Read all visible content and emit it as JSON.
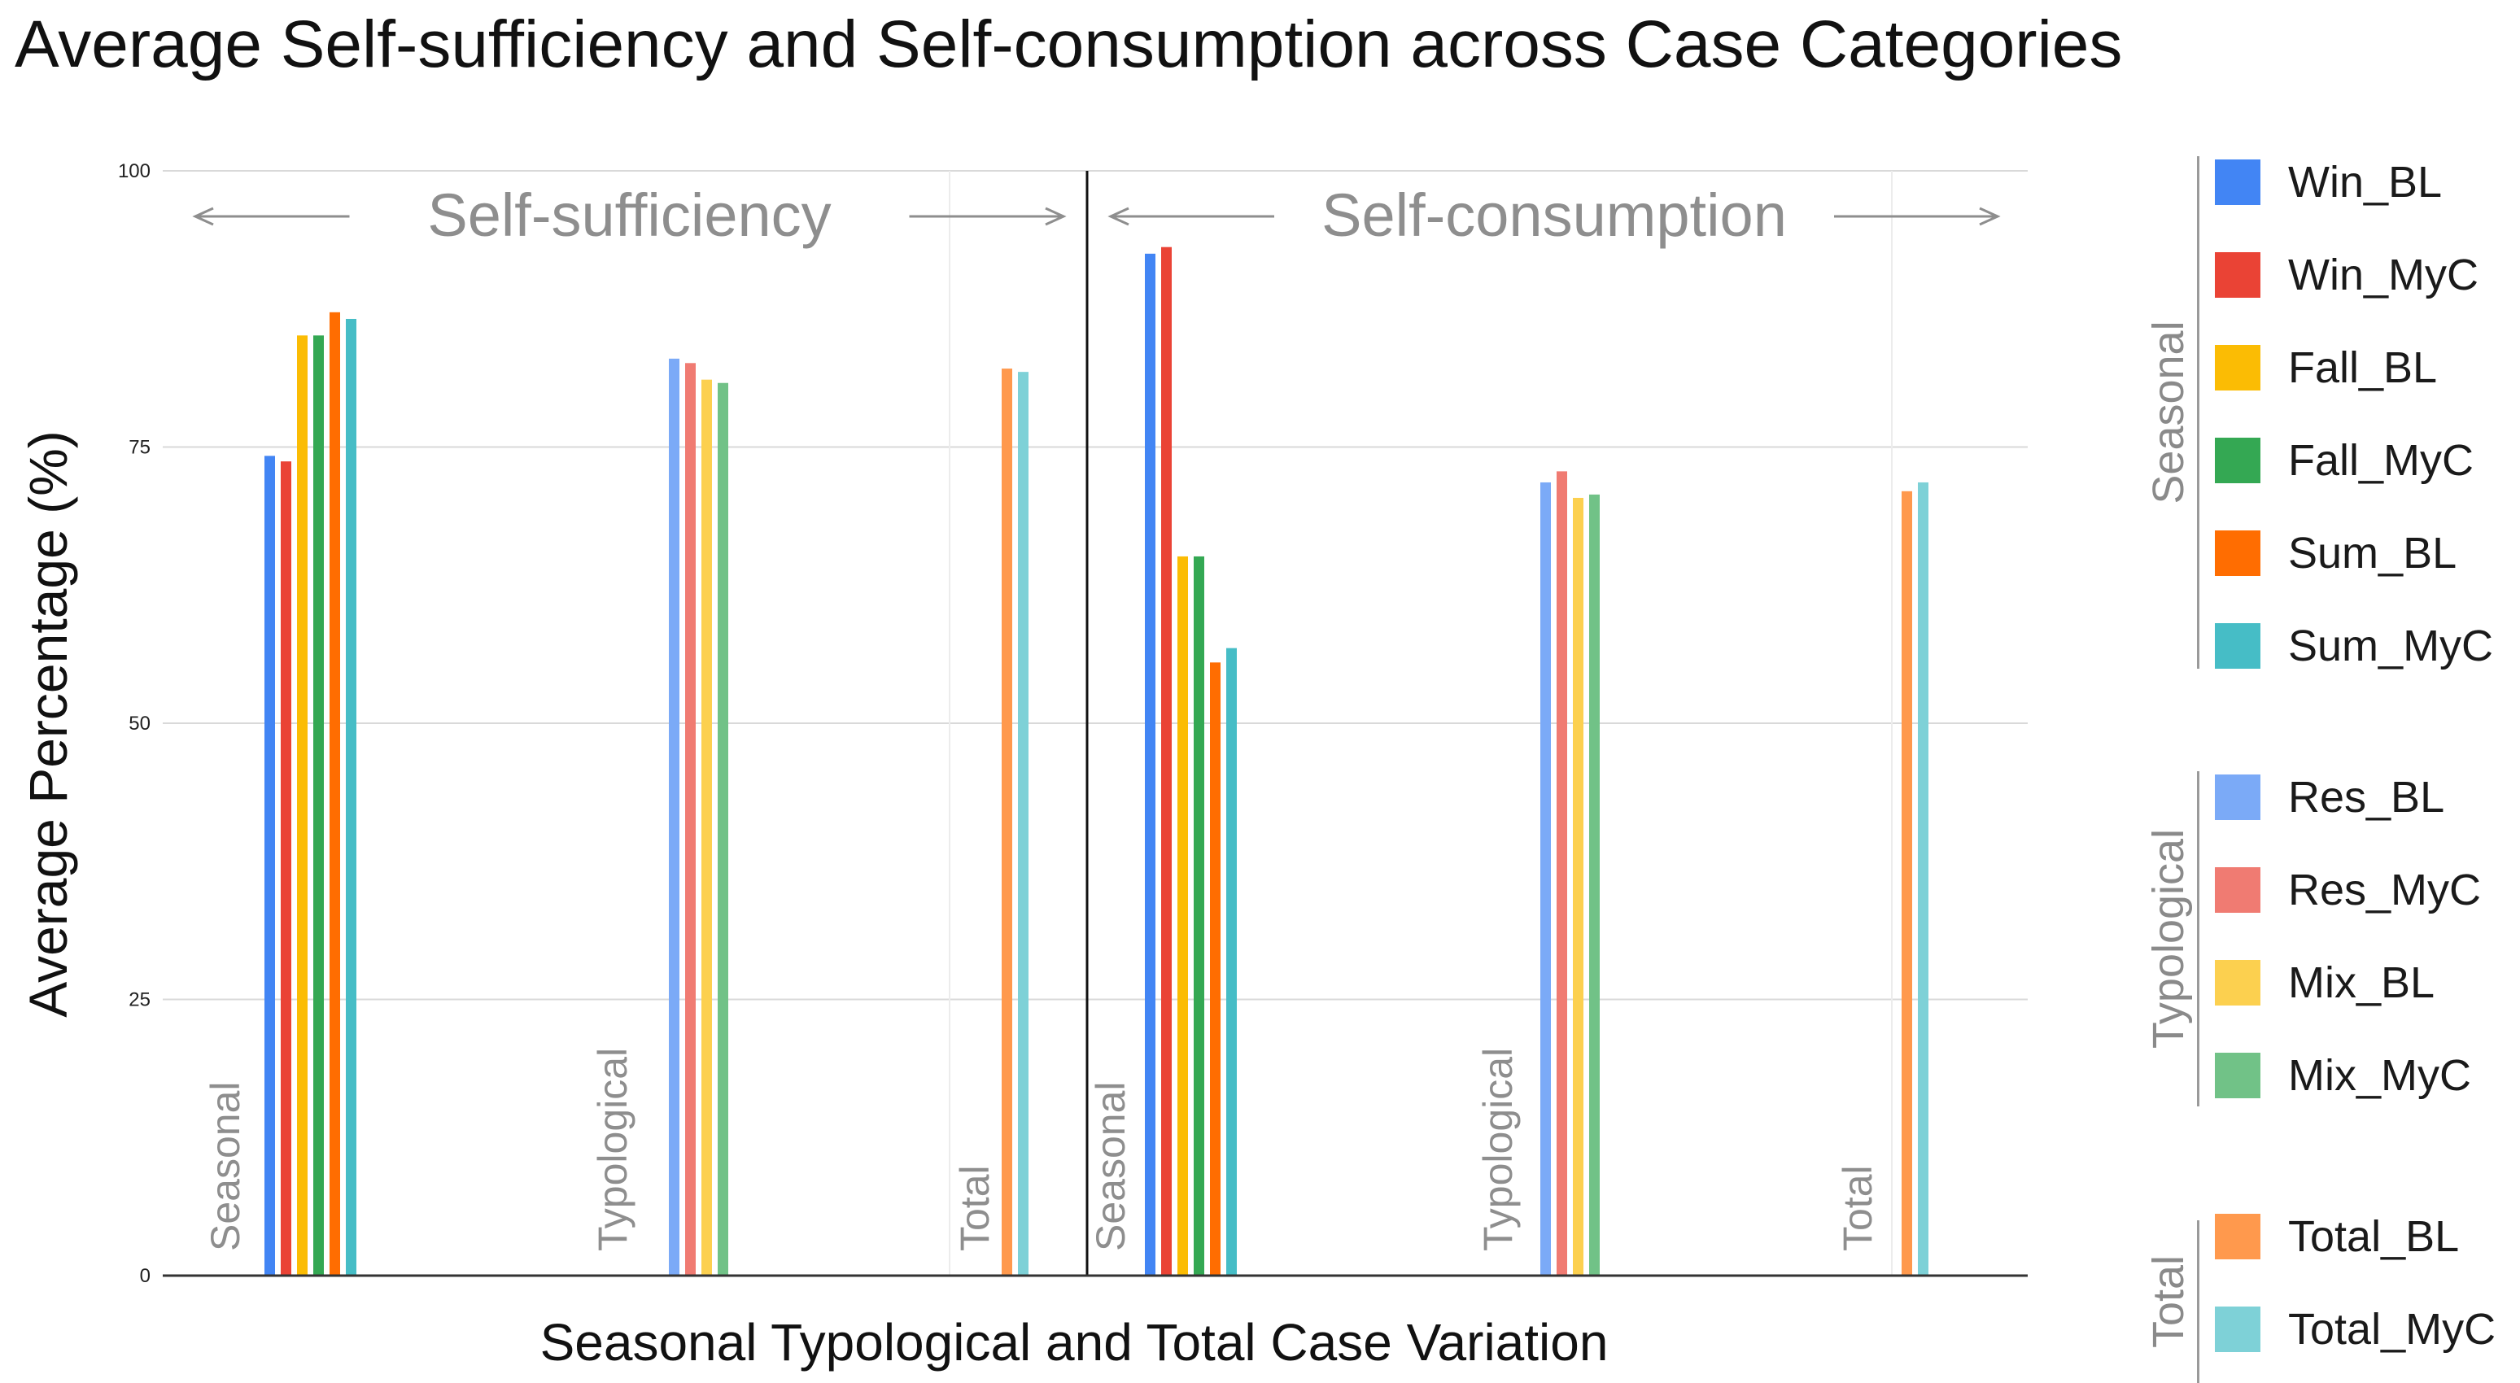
{
  "chart_data": {
    "type": "bar",
    "title": "Average Self-sufficiency and Self-consumption across Case Categories",
    "xlabel": "Seasonal Typological and Total Case Variation",
    "ylabel": "Average Percentage (%)",
    "ylim": [
      0,
      100
    ],
    "yticks": [
      "0",
      "25",
      "50",
      "75",
      "100"
    ],
    "grid": true,
    "legend_position": "right",
    "panels": [
      {
        "label": "Self-sufficiency",
        "groups": [
          {
            "label": "Seasonal",
            "series": [
              "Win_BL",
              "Win_MyC",
              "Fall_BL",
              "Fall_MyC",
              "Sum_BL",
              "Sum_MyC"
            ],
            "values": [
              74.2,
              73.7,
              85.1,
              85.1,
              87.2,
              86.6
            ]
          },
          {
            "label": "Typological",
            "series": [
              "Res_BL",
              "Res_MyC",
              "Mix_BL",
              "Mix_MyC"
            ],
            "values": [
              83.0,
              82.6,
              81.1,
              80.8
            ]
          },
          {
            "label": "Total",
            "series": [
              "Total_BL",
              "Total_MyC"
            ],
            "values": [
              82.1,
              81.8
            ]
          }
        ]
      },
      {
        "label": "Self-consumption",
        "groups": [
          {
            "label": "Seasonal",
            "series": [
              "Win_BL",
              "Win_MyC",
              "Fall_BL",
              "Fall_MyC",
              "Sum_BL",
              "Sum_MyC"
            ],
            "values": [
              92.5,
              93.1,
              65.1,
              65.1,
              55.5,
              56.8
            ]
          },
          {
            "label": "Typological",
            "series": [
              "Res_BL",
              "Res_MyC",
              "Mix_BL",
              "Mix_MyC"
            ],
            "values": [
              71.8,
              72.8,
              70.4,
              70.7
            ]
          },
          {
            "label": "Total",
            "series": [
              "Total_BL",
              "Total_MyC"
            ],
            "values": [
              71.0,
              71.8
            ]
          }
        ]
      }
    ],
    "legend": [
      {
        "group": "Seasonal",
        "items": [
          {
            "name": "Win_BL",
            "color": "#4285f4"
          },
          {
            "name": "Win_MyC",
            "color": "#ea4335"
          },
          {
            "name": "Fall_BL",
            "color": "#fbbc04"
          },
          {
            "name": "Fall_MyC",
            "color": "#34a853"
          },
          {
            "name": "Sum_BL",
            "color": "#ff6d01"
          },
          {
            "name": "Sum_MyC",
            "color": "#46bdc6"
          }
        ]
      },
      {
        "group": "Typological",
        "items": [
          {
            "name": "Res_BL",
            "color": "#7baaf7"
          },
          {
            "name": "Res_MyC",
            "color": "#f07b72"
          },
          {
            "name": "Mix_BL",
            "color": "#fcd04f"
          },
          {
            "name": "Mix_MyC",
            "color": "#71c287"
          }
        ]
      },
      {
        "group": "Total",
        "items": [
          {
            "name": "Total_BL",
            "color": "#ff994d"
          },
          {
            "name": "Total_MyC",
            "color": "#7ed1d7"
          }
        ]
      }
    ]
  }
}
